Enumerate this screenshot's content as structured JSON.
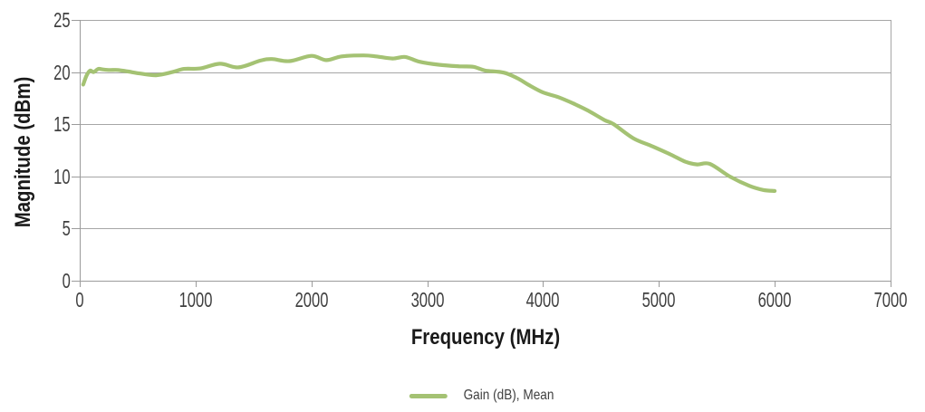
{
  "chart_data": {
    "type": "line",
    "title": "",
    "xlabel": "Frequency (MHz)",
    "ylabel": "Magnitude (dBm)",
    "xlim": [
      0,
      7000
    ],
    "ylim": [
      0,
      25
    ],
    "x_ticks": [
      0,
      1000,
      2000,
      3000,
      4000,
      5000,
      6000,
      7000
    ],
    "y_ticks": [
      0,
      5,
      10,
      15,
      20,
      25
    ],
    "grid": "horizontal",
    "legend_position": "bottom-center",
    "series": [
      {
        "name": "Gain (dB), Mean",
        "color": "#a4c273",
        "x": [
          30,
          60,
          90,
          120,
          160,
          200,
          260,
          330,
          420,
          530,
          660,
          800,
          900,
          1040,
          1210,
          1370,
          1560,
          1660,
          1810,
          2000,
          2130,
          2260,
          2450,
          2560,
          2700,
          2810,
          2930,
          3100,
          3280,
          3400,
          3500,
          3660,
          3780,
          3870,
          4000,
          4130,
          4260,
          4390,
          4530,
          4610,
          4780,
          4940,
          5100,
          5230,
          5330,
          5440,
          5610,
          5780,
          5900,
          6000
        ],
        "y": [
          18.8,
          19.7,
          20.15,
          20.0,
          20.3,
          20.25,
          20.2,
          20.2,
          20.05,
          19.85,
          19.7,
          20.0,
          20.3,
          20.35,
          20.8,
          20.45,
          21.1,
          21.25,
          21.05,
          21.55,
          21.15,
          21.5,
          21.6,
          21.5,
          21.3,
          21.45,
          21.0,
          20.7,
          20.55,
          20.5,
          20.15,
          19.95,
          19.4,
          18.8,
          18.05,
          17.6,
          17.0,
          16.3,
          15.4,
          15.0,
          13.65,
          12.9,
          12.1,
          11.4,
          11.15,
          11.2,
          10.0,
          9.1,
          8.7,
          8.6
        ]
      }
    ]
  },
  "colors": {
    "line_green": "#a4c273",
    "gridline": "#a6a6a6",
    "axis": "#9b9b9b",
    "tick_label": "#3f3f3f",
    "title": "#1a1a1a",
    "background": "#ffffff"
  }
}
